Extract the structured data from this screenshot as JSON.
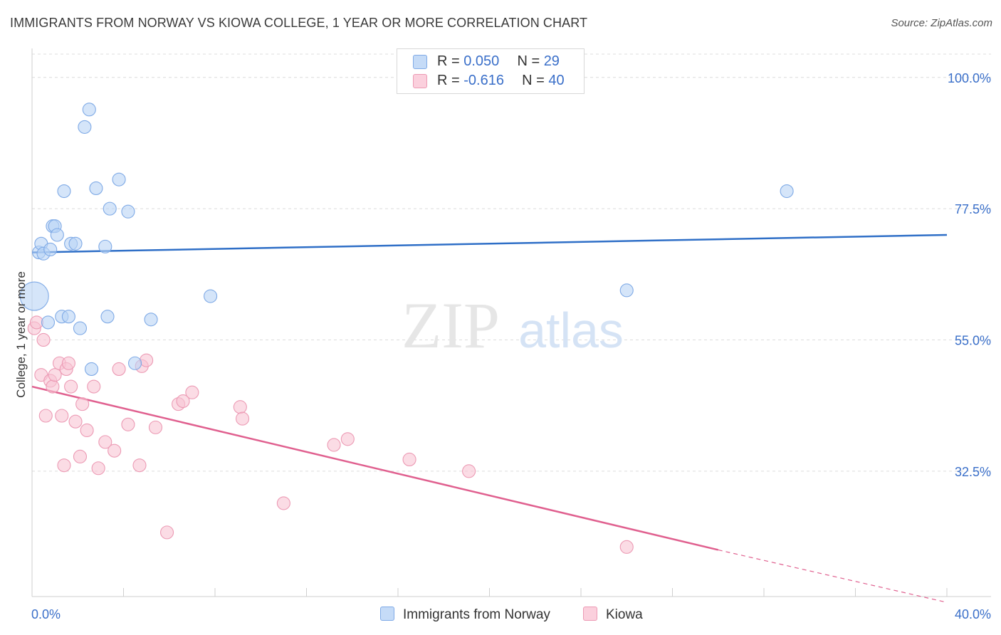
{
  "header": {
    "title": "IMMIGRANTS FROM NORWAY VS KIOWA COLLEGE, 1 YEAR OR MORE CORRELATION CHART",
    "source": "Source: ZipAtlas.com"
  },
  "legend_top": {
    "rows": [
      {
        "r_label": "R = ",
        "r_value": "0.050",
        "n_label": "N = ",
        "n_value": "29"
      },
      {
        "r_label": "R = ",
        "r_value": "-0.616",
        "n_label": "N = ",
        "n_value": "40"
      }
    ]
  },
  "watermark": {
    "zip": "ZIP",
    "atlas": "atlas"
  },
  "colors": {
    "norway_fill": "#b9d3f5",
    "norway_stroke": "#7faae6",
    "norway_line": "#2f6fc7",
    "kiowa_fill": "#f8c4d4",
    "kiowa_stroke": "#ec9ab4",
    "kiowa_line": "#e0608f",
    "grid": "#dcdcdc",
    "tick_label": "#3a6fc9"
  },
  "chart_data": {
    "type": "scatter",
    "title": "IMMIGRANTS FROM NORWAY VS KIOWA COLLEGE, 1 YEAR OR MORE CORRELATION CHART",
    "xlabel": "",
    "ylabel": "College, 1 year or more",
    "xlim": [
      0,
      40
    ],
    "ylim": [
      11,
      104
    ],
    "x_tick_labels": [
      "0.0%",
      "40.0%"
    ],
    "y_ticks": [
      32.5,
      55.0,
      77.5,
      100.0
    ],
    "y_tick_labels": [
      "32.5%",
      "55.0%",
      "77.5%",
      "100.0%"
    ],
    "grid": true,
    "legend": "bottom-center",
    "series": [
      {
        "name": "Immigrants from Norway",
        "r": 0.05,
        "n": 29,
        "trend": {
          "x0": 0,
          "y0": 70.0,
          "x1": 40,
          "y1": 73.0
        },
        "points": [
          {
            "x": 0.1,
            "y": 62.5,
            "size": "large"
          },
          {
            "x": 0.3,
            "y": 70.0
          },
          {
            "x": 0.4,
            "y": 71.5
          },
          {
            "x": 0.5,
            "y": 69.8
          },
          {
            "x": 0.7,
            "y": 58.0
          },
          {
            "x": 0.8,
            "y": 70.5
          },
          {
            "x": 0.9,
            "y": 74.5
          },
          {
            "x": 1.0,
            "y": 74.5
          },
          {
            "x": 1.1,
            "y": 73.0
          },
          {
            "x": 1.3,
            "y": 59.0
          },
          {
            "x": 1.4,
            "y": 80.5
          },
          {
            "x": 1.6,
            "y": 59.0
          },
          {
            "x": 1.7,
            "y": 71.5
          },
          {
            "x": 1.9,
            "y": 71.5
          },
          {
            "x": 2.1,
            "y": 57.0
          },
          {
            "x": 2.3,
            "y": 91.5
          },
          {
            "x": 2.5,
            "y": 94.5
          },
          {
            "x": 2.6,
            "y": 50.0
          },
          {
            "x": 2.8,
            "y": 81.0
          },
          {
            "x": 3.2,
            "y": 71.0
          },
          {
            "x": 3.3,
            "y": 59.0
          },
          {
            "x": 3.4,
            "y": 77.5
          },
          {
            "x": 3.8,
            "y": 82.5
          },
          {
            "x": 4.2,
            "y": 77.0
          },
          {
            "x": 4.5,
            "y": 51.0
          },
          {
            "x": 5.2,
            "y": 58.5
          },
          {
            "x": 7.8,
            "y": 62.5
          },
          {
            "x": 26.0,
            "y": 63.5
          },
          {
            "x": 33.0,
            "y": 80.5
          }
        ]
      },
      {
        "name": "Kiowa",
        "r": -0.616,
        "n": 40,
        "trend": {
          "x0": 0,
          "y0": 47.0,
          "x1": 30,
          "y1": 19.0,
          "dash_x1": 40,
          "dash_y1": 10.0
        },
        "points": [
          {
            "x": 0.1,
            "y": 57.0
          },
          {
            "x": 0.2,
            "y": 58.0
          },
          {
            "x": 0.4,
            "y": 49.0
          },
          {
            "x": 0.5,
            "y": 55.0
          },
          {
            "x": 0.6,
            "y": 42.0
          },
          {
            "x": 0.8,
            "y": 48.0
          },
          {
            "x": 0.9,
            "y": 47.0
          },
          {
            "x": 1.0,
            "y": 49.0
          },
          {
            "x": 1.2,
            "y": 51.0
          },
          {
            "x": 1.3,
            "y": 42.0
          },
          {
            "x": 1.4,
            "y": 33.5
          },
          {
            "x": 1.5,
            "y": 50.0
          },
          {
            "x": 1.6,
            "y": 51.0
          },
          {
            "x": 1.7,
            "y": 47.0
          },
          {
            "x": 1.9,
            "y": 41.0
          },
          {
            "x": 2.1,
            "y": 35.0
          },
          {
            "x": 2.2,
            "y": 44.0
          },
          {
            "x": 2.4,
            "y": 39.5
          },
          {
            "x": 2.7,
            "y": 47.0
          },
          {
            "x": 2.9,
            "y": 33.0
          },
          {
            "x": 3.2,
            "y": 37.5
          },
          {
            "x": 3.6,
            "y": 36.0
          },
          {
            "x": 3.8,
            "y": 50.0
          },
          {
            "x": 4.2,
            "y": 40.5
          },
          {
            "x": 4.7,
            "y": 33.5
          },
          {
            "x": 4.8,
            "y": 50.5
          },
          {
            "x": 5.0,
            "y": 51.5
          },
          {
            "x": 5.4,
            "y": 40.0
          },
          {
            "x": 5.9,
            "y": 22.0
          },
          {
            "x": 6.4,
            "y": 44.0
          },
          {
            "x": 6.6,
            "y": 44.5
          },
          {
            "x": 7.0,
            "y": 46.0
          },
          {
            "x": 9.1,
            "y": 43.5
          },
          {
            "x": 9.2,
            "y": 41.5
          },
          {
            "x": 11.0,
            "y": 27.0
          },
          {
            "x": 13.2,
            "y": 37.0
          },
          {
            "x": 13.8,
            "y": 38.0
          },
          {
            "x": 16.5,
            "y": 34.5
          },
          {
            "x": 19.1,
            "y": 32.5
          },
          {
            "x": 26.0,
            "y": 19.5
          }
        ]
      }
    ]
  },
  "legend_bottom": {
    "items": [
      "Immigrants from Norway",
      "Kiowa"
    ]
  }
}
